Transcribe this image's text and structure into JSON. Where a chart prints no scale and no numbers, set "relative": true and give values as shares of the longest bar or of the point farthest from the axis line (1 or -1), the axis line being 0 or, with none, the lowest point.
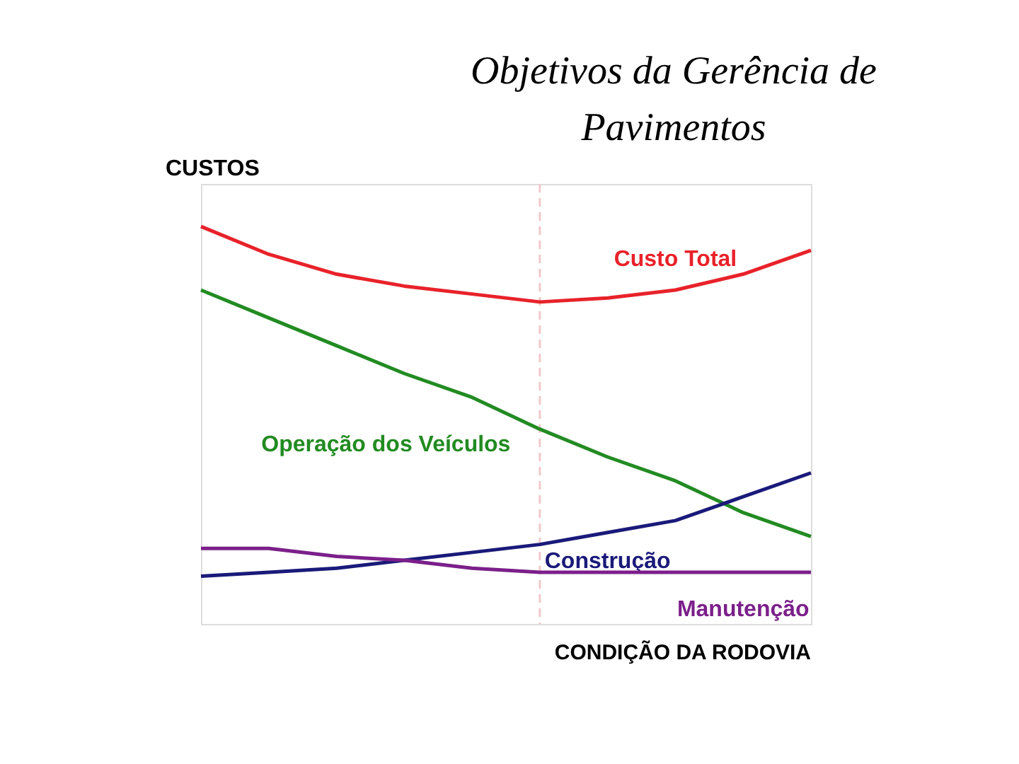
{
  "chart_data": {
    "type": "line",
    "title": "Objetivos da Gerência de Pavimentos",
    "ylabel": "CUSTOS",
    "xlabel": "CONDIÇÃO DA RODOVIA",
    "relative": true,
    "grid": false,
    "marker": "none",
    "line_style": "solid",
    "categories": [
      null,
      null,
      null,
      null,
      null,
      null,
      null,
      null,
      null,
      null
    ],
    "series": [
      {
        "name": "Custo Total",
        "color": "#e8222a",
        "values": [
          1,
          0.93,
          0.88,
          0.85,
          0.83,
          0.81,
          0.82,
          0.84,
          0.88,
          0.94
        ]
      },
      {
        "name": "Operação dos Veículos",
        "color": "#228b22",
        "values": [
          0.84,
          0.77,
          0.7,
          0.63,
          0.57,
          0.49,
          0.42,
          0.36,
          0.28,
          0.22
        ]
      },
      {
        "name": "Construção",
        "color": "#1a1a7a",
        "values": [
          0.12,
          0.13,
          0.14,
          0.16,
          0.18,
          0.2,
          0.23,
          0.26,
          0.32,
          0.38
        ]
      },
      {
        "name": "Manutenção",
        "color": "#7b1f8a",
        "values": [
          0.19,
          0.19,
          0.17,
          0.16,
          0.14,
          0.13,
          0.13,
          0.13,
          0.13,
          0.13
        ]
      }
    ]
  }
}
